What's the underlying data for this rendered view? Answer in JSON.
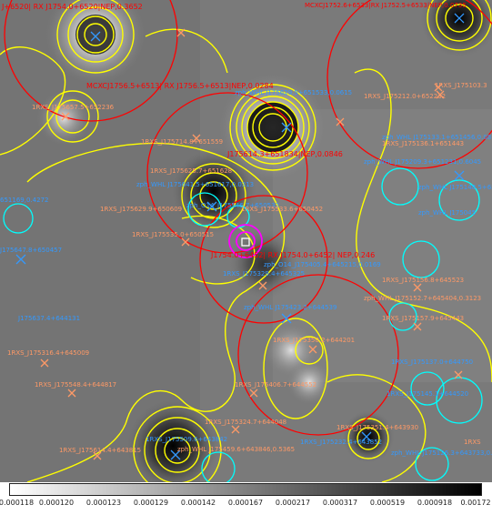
{
  "colorbar": {
    "gradient": [
      "#ffffff",
      "#000000"
    ],
    "ticks": [
      "0.000118",
      "0.000120",
      "0.000123",
      "0.000129",
      "0.000142",
      "0.000167",
      "0.000217",
      "0.000317",
      "0.000519",
      "0.000918",
      "0.00172"
    ]
  },
  "colors": {
    "contour": "#ffff00",
    "region_red": "#ff0000",
    "region_cyan": "#00ffff",
    "region_magenta": "#ff00ff",
    "marker_blue": "#3399ff",
    "marker_orange": "#ff9966",
    "label_blue": "#3399ff"
  },
  "labels": {
    "top_left_red": "J+6520| RX J1754.0+6520|NEP,0.3652",
    "top_right_red": "MCXCJ1752.6+6533|RX J1752.5+6533|NEP,0.0735",
    "mcxc_1756": "MCXCJ1756.5+6513| RX J1756.5+6513|NEP,0.0284",
    "zph_1756a": "zph_WHL J175629.5+651533,0.0615",
    "rxs_1755_orange_left": "1RXS_J175657.5+652236",
    "rxs_1755_top": "1RXS_J175714.8+651559",
    "rxs_1755_mid": "1RXS_J175625.7+651628",
    "nep_0846": "J175614.3+651834|NEP,0.0846",
    "zph_1756b": "zph_WHL J175641.5+651617,0.0313",
    "zph_1755c": "zph_O14_J175546.7+650532",
    "rxs_1755_low": "1RXS_J175535.0+650515",
    "rxs_1755_low2": "1RXS_J175533.6+650452",
    "nep_246": "J1754.0+6452| RX J1754.0+6452| NEP,0.246",
    "zph_o14": "zph_O14_J175405.4+645215,0.0169",
    "rxs_1756_left": "1RXS_J175629.9+650609",
    "rxs_right_top": "1RXS_J175212.0+652232",
    "rxs_1751": "1RXS_J175103.3",
    "zph_right1": "zph_WHL J175133.1+651456,0.0871",
    "rxs_right2": "1RXS_J175136.1+651443",
    "zph_right3": "zph_WHL J175209.3+651231,0.6045",
    "zph_right4": "zph_WHL J175148.5+650913,0.4",
    "zph_right5": "zph_WHL J175045",
    "left_cyan": "651169,0.4272",
    "left_blue1": "J175647.8+650457",
    "rxs_1752_right": "1RXS_J175156.8+645523",
    "zph_right6": "zph_WHL J175152.7+645404,0.3123",
    "rxs_1752_b": "1RXS_J175157.9+645443",
    "rxs_1753_c": "1RXS_J175329.4+645325",
    "zph_1753": "zph_WHL J175423.2+644539",
    "rxs_1753_d": "1RXS_J175349.1+644533",
    "rxs_mid2": "1RXS_J175350.2+644201",
    "left_blue2": "J175637.4+644131",
    "left_orange2": "1RXS_J175316.4+645009",
    "rxs_1755_e": "1RXS_J175548.4+644817",
    "rxs_mid3": "1RXS_J175406.7+644552",
    "rxs_right7": "1RXS_J175137.0+644750",
    "rxs_right8": "1RXS_J175145.1+644520",
    "rxs_bot1": "1RXS_J175324.7+644048",
    "rxs_bot2": "1RXS_J175351.4+643930",
    "rxs_bot3": "1RXS_J175614.4+643815",
    "rxs_bot4": "1RXS_J175509.6+643842",
    "zph_bot5": "zph_WHL J175459.6+643846,0.5365",
    "rxs_bot6": "1RXS_J175232.4+643852",
    "zph_bot7": "zph_WHL J175126.3+643733,0.3",
    "rxs_bot8": "1RXS"
  }
}
